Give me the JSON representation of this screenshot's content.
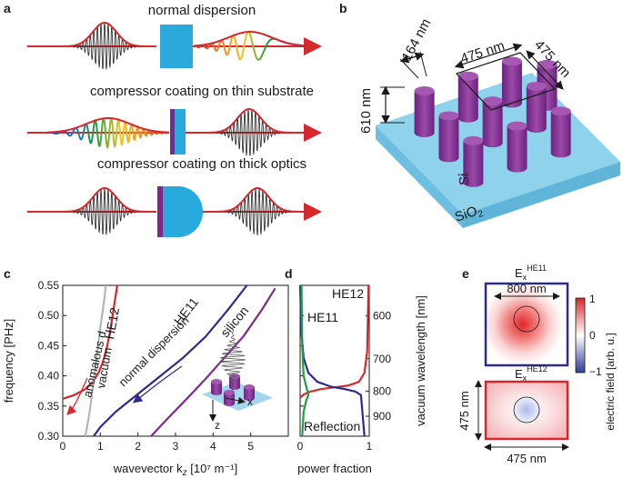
{
  "panels": {
    "a": {
      "label": "a",
      "rows": [
        {
          "caption": "normal dispersion"
        },
        {
          "caption": "compressor coating on thin substrate"
        },
        {
          "caption": "compressor coating on thick optics"
        }
      ]
    },
    "b": {
      "label": "b",
      "pillar_diameter": "164 nm",
      "pillar_height": "610 nm",
      "pitch_x": "475 nm",
      "pitch_y": "475 nm",
      "pillar_material": "Si",
      "substrate_material": "SiO",
      "substrate_subscript": "2"
    },
    "c": {
      "label": "c"
    },
    "d": {
      "label": "d"
    },
    "e": {
      "label": "e",
      "top_title_main": "E",
      "top_title_sub": "x",
      "top_title_sup": "HE11",
      "bottom_title_main": "E",
      "bottom_title_sub": "x",
      "bottom_title_sup": "HE12",
      "core_size": "800 nm",
      "cell_height": "475 nm",
      "cell_width": "475 nm",
      "colorbar_label": "electric field [arb. u.]",
      "colorbar_ticks": [
        "1",
        "0",
        "−1"
      ]
    }
  },
  "colors": {
    "pulse_red": "#d7282e",
    "glass_blue": "#29a9dc",
    "coating_purple": "#7b2a8c",
    "he11": "#2e2a8c",
    "he12": "#d7282e",
    "silicon": "#7d2c8c",
    "vacuum": "#b5b5b5",
    "reflection": "#1f9e3c"
  },
  "chart_data": [
    {
      "type": "line",
      "panel": "c",
      "xlabel": "wavevector k",
      "xlabel_sub": "z",
      "xlabel_unit": " [10⁷ m⁻¹]",
      "ylabel": "frequency [PHz]",
      "xlim": [
        0,
        6
      ],
      "ylim": [
        0.3,
        0.55
      ],
      "xticks": [
        "0",
        "1",
        "2",
        "3",
        "4",
        "5"
      ],
      "yticks": [
        "0.30",
        "0.35",
        "0.40",
        "0.45",
        "0.50",
        "0.55"
      ],
      "series": [
        {
          "name": "HE12",
          "x": [
            0.0,
            0.3,
            0.6,
            0.8,
            0.95,
            1.05,
            1.15,
            1.25,
            1.35,
            1.45
          ],
          "y": [
            0.362,
            0.368,
            0.378,
            0.39,
            0.405,
            0.42,
            0.44,
            0.47,
            0.51,
            0.55
          ]
        },
        {
          "name": "vacuum",
          "x": [
            0.6,
            0.7,
            0.8,
            0.9,
            1.0,
            1.1,
            1.15
          ],
          "y": [
            0.3,
            0.334,
            0.38,
            0.43,
            0.48,
            0.525,
            0.55
          ]
        },
        {
          "name": "HE11",
          "x": [
            0.82,
            1.0,
            1.4,
            2.0,
            2.6,
            3.2,
            3.8,
            4.4,
            4.9
          ],
          "y": [
            0.3,
            0.315,
            0.34,
            0.37,
            0.4,
            0.43,
            0.465,
            0.51,
            0.55
          ]
        },
        {
          "name": "silicon",
          "x": [
            2.35,
            2.8,
            3.3,
            3.8,
            4.3,
            4.8,
            5.3,
            5.65
          ],
          "y": [
            0.3,
            0.33,
            0.362,
            0.395,
            0.43,
            0.465,
            0.51,
            0.545
          ]
        }
      ],
      "annotations": [
        "anomalous d.",
        "vacuum",
        "normal dispersion",
        "HE11",
        "HE12",
        "silicon",
        "x",
        "z"
      ]
    },
    {
      "type": "line",
      "panel": "d",
      "xlabel": "power fraction",
      "ylabel_right": "vacuum wavelength [nm]",
      "xlim": [
        0,
        1
      ],
      "ylim": [
        0.3,
        0.55
      ],
      "xticks": [
        "0",
        "1"
      ],
      "right_ticks": [
        {
          "label": "600",
          "freq": 0.4997
        },
        {
          "label": "700",
          "freq": 0.4283
        },
        {
          "label": "800",
          "freq": 0.3747
        },
        {
          "label": "900",
          "freq": 0.3331
        }
      ],
      "series": [
        {
          "name": "HE12",
          "x": [
            0.0,
            0.05,
            0.15,
            0.3,
            0.5,
            0.7,
            0.85,
            0.93,
            0.97,
            0.99
          ],
          "y": [
            0.364,
            0.369,
            0.374,
            0.378,
            0.381,
            0.384,
            0.39,
            0.405,
            0.44,
            0.55
          ]
        },
        {
          "name": "HE11",
          "x": [
            0.0,
            0.02,
            0.05,
            0.12,
            0.25,
            0.45,
            0.65,
            0.8,
            0.88,
            0.93
          ],
          "y": [
            0.55,
            0.47,
            0.43,
            0.405,
            0.39,
            0.382,
            0.378,
            0.374,
            0.368,
            0.3
          ]
        },
        {
          "name": "Reflection",
          "x": [
            0.02,
            0.03,
            0.05,
            0.12,
            0.09,
            0.05,
            0.03
          ],
          "y": [
            0.55,
            0.45,
            0.4,
            0.368,
            0.36,
            0.34,
            0.3
          ]
        }
      ],
      "annotations": [
        "HE12",
        "HE11",
        "Reflection"
      ]
    }
  ]
}
